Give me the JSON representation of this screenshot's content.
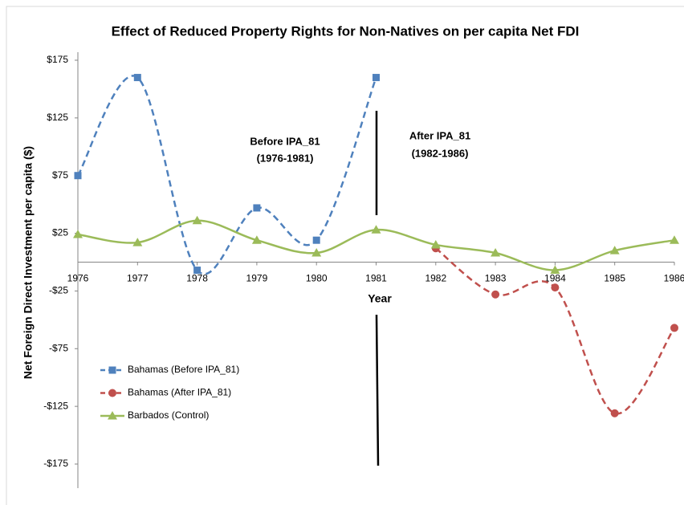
{
  "chart_data": {
    "type": "line",
    "title": "Effect of Reduced Property Rights for Non-Natives on per capita Net FDI",
    "x_label": "Year",
    "y_label": "Net Foreign Direct Investment  per capita ($)",
    "annotations": [
      "Before IPA_81",
      "(1976-1981)",
      "After IPA_81",
      "(1982-1986)"
    ],
    "xlim": [
      1976,
      1986
    ],
    "xticks": [
      1976,
      1977,
      1978,
      1979,
      1980,
      1981,
      1982,
      1983,
      1984,
      1985,
      1986
    ],
    "ylim": [
      -175,
      175
    ],
    "yticks": [
      {
        "value": 175,
        "label": "$175"
      },
      {
        "value": 125,
        "label": "$125"
      },
      {
        "value": 75,
        "label": "$75"
      },
      {
        "value": 25,
        "label": "$25"
      },
      {
        "value": -25,
        "label": "-$25"
      },
      {
        "value": -75,
        "label": "-$75"
      },
      {
        "value": -125,
        "label": "-$125"
      },
      {
        "value": -175,
        "label": "-$175"
      }
    ],
    "grid": false,
    "legend": "lower left",
    "series": [
      {
        "name": "Bahamas (Before IPA_81)",
        "color": "#4f81bd",
        "marker": "square",
        "dashed": true,
        "x": [
          1976,
          1977,
          1978,
          1979,
          1980,
          1981
        ],
        "values": [
          75,
          160,
          -7,
          47,
          19,
          160
        ]
      },
      {
        "name": "Bahamas (After IPA_81)",
        "color": "#c0504d",
        "marker": "circle",
        "dashed": true,
        "x": [
          1982,
          1983,
          1984,
          1985,
          1986
        ],
        "values": [
          12,
          -28,
          -22,
          -131,
          -57
        ]
      },
      {
        "name": "Barbados (Control)",
        "color": "#9bbb59",
        "marker": "triangle",
        "dashed": false,
        "x": [
          1976,
          1977,
          1978,
          1979,
          1980,
          1981,
          1982,
          1983,
          1984,
          1985,
          1986
        ],
        "values": [
          24,
          17,
          36,
          19,
          8,
          28,
          15,
          8,
          -7,
          10,
          19
        ]
      }
    ]
  }
}
